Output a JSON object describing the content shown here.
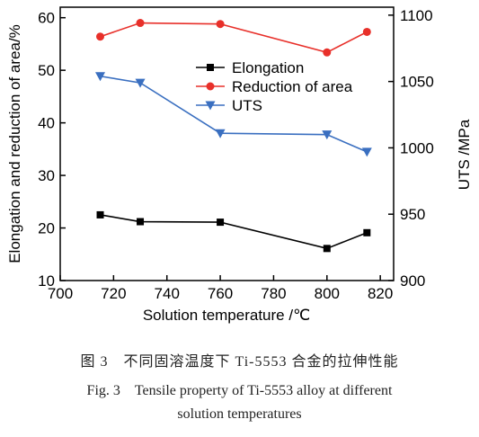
{
  "chart_data": {
    "type": "line",
    "x": [
      715,
      730,
      760,
      800,
      815
    ],
    "xlabel": "Solution temperature /℃",
    "xlim": [
      700,
      825
    ],
    "xticks": [
      700,
      720,
      740,
      760,
      780,
      800,
      820
    ],
    "ylabel_left": "Elongation and reduction of area/%",
    "ylim_left": [
      10,
      62
    ],
    "yticks_left": [
      10,
      20,
      30,
      40,
      50,
      60
    ],
    "ylabel_right": "UTS /MPa",
    "ylim_right": [
      900,
      1106
    ],
    "yticks_right": [
      900,
      950,
      1000,
      1050,
      1100
    ],
    "legend_position": "upper-middle",
    "grid": false,
    "series": [
      {
        "name": "Elongation",
        "axis": "left",
        "color": "#000000",
        "marker": "square",
        "values": [
          22.5,
          21.2,
          21.1,
          16.1,
          19.1
        ]
      },
      {
        "name": "Reduction of area",
        "axis": "left",
        "color": "#e8302a",
        "marker": "circle",
        "values": [
          56.4,
          59.0,
          58.8,
          53.4,
          57.3
        ]
      },
      {
        "name": "UTS",
        "axis": "right",
        "color": "#3a6fc0",
        "marker": "triangle-down",
        "values": [
          1054,
          1049,
          1011,
          1010,
          997
        ]
      }
    ]
  },
  "caption": {
    "cn": "图 3　不同固溶温度下 Ti-5553 合金的拉伸性能",
    "en_line1": "Fig. 3　Tensile property of Ti-5553 alloy at different",
    "en_line2": "solution temperatures"
  }
}
